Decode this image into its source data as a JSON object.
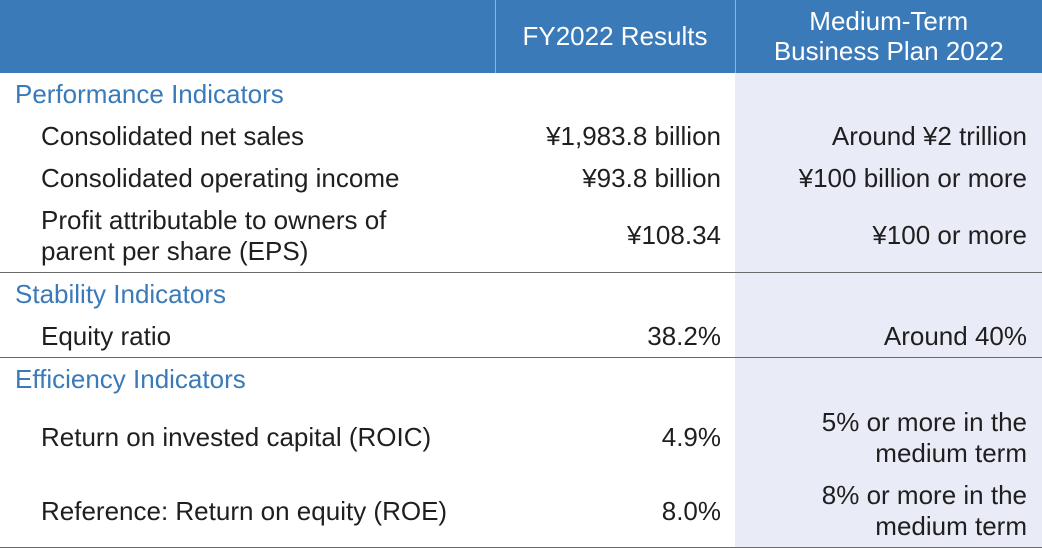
{
  "header": {
    "col_results": "FY2022 Results",
    "col_plan_line1": "Medium-Term",
    "col_plan_line2": "Business Plan 2022"
  },
  "sections": [
    {
      "title": "Performance Indicators",
      "rows": [
        {
          "label": "Consolidated net sales",
          "result": "¥1,983.8 billion",
          "plan": "Around ¥2 trillion"
        },
        {
          "label": "Consolidated operating income",
          "result": "¥93.8 billion",
          "plan": "¥100 billion or more"
        },
        {
          "label_line1": "Profit attributable to owners of",
          "label_line2": "parent per share (EPS)",
          "result": "¥108.34",
          "plan": "¥100 or more"
        }
      ]
    },
    {
      "title": "Stability Indicators",
      "rows": [
        {
          "label": "Equity ratio",
          "result": "38.2%",
          "plan": "Around 40%"
        }
      ]
    },
    {
      "title": "Efficiency Indicators",
      "rows": [
        {
          "label": "Return on invested capital (ROIC)",
          "result": "4.9%",
          "plan_line1": "5% or more in the",
          "plan_line2": "medium term"
        },
        {
          "label": "Reference: Return on equity (ROE)",
          "result": "8.0%",
          "plan_line1": "8% or more in the",
          "plan_line2": "medium term"
        }
      ]
    }
  ],
  "colors": {
    "header_bg": "#3a7ab9",
    "section_title": "#3a7ab9",
    "plan_column_bg": "#e9ecf7"
  }
}
